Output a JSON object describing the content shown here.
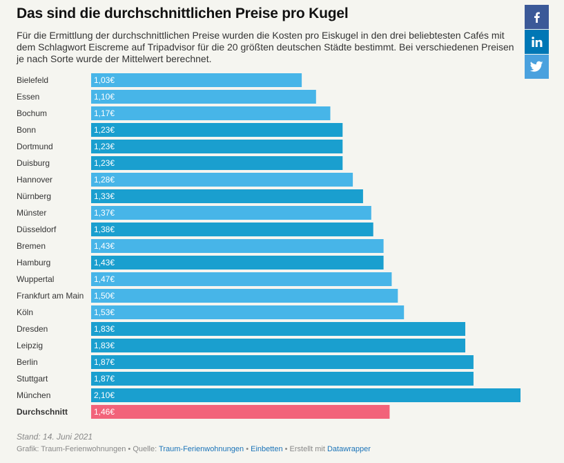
{
  "header": {
    "title": "Das sind die durchschnittlichen Preise pro Kugel",
    "description": "Für die Ermittlung der durchschnittlichen Preise wurden die Kosten pro Eiskugel in den drei beliebtesten Cafés mit dem Schlagwort Eiscreme auf Tripadvisor für die 20 größten deutschen Städte bestimmt. Bei verschiedenen Preisen je nach Sorte wurde der Mittelwert berechnet."
  },
  "share": {
    "facebook_icon": "facebook-icon",
    "linkedin_icon": "linkedin-icon",
    "twitter_icon": "twitter-icon"
  },
  "chart_data": {
    "type": "bar",
    "orientation": "horizontal",
    "title": "Das sind die durchschnittlichen Preise pro Kugel",
    "categories": [
      "Bielefeld",
      "Essen",
      "Bochum",
      "Bonn",
      "Dortmund",
      "Duisburg",
      "Hannover",
      "Nürnberg",
      "Münster",
      "Düsseldorf",
      "Bremen",
      "Hamburg",
      "Wuppertal",
      "Frankfurt am Main",
      "Köln",
      "Dresden",
      "Leipzig",
      "Berlin",
      "Stuttgart",
      "München",
      "Durchschnitt"
    ],
    "values": [
      1.03,
      1.1,
      1.17,
      1.23,
      1.23,
      1.23,
      1.28,
      1.33,
      1.37,
      1.38,
      1.43,
      1.43,
      1.47,
      1.5,
      1.53,
      1.83,
      1.83,
      1.87,
      1.87,
      2.1,
      1.46
    ],
    "value_labels": [
      "1,03€",
      "1,10€",
      "1,17€",
      "1,23€",
      "1,23€",
      "1,23€",
      "1,28€",
      "1,33€",
      "1,37€",
      "1,38€",
      "1,43€",
      "1,43€",
      "1,47€",
      "1,50€",
      "1,53€",
      "1,83€",
      "1,83€",
      "1,87€",
      "1,87€",
      "2,10€",
      "1,46€"
    ],
    "highlight_category": "Durchschnitt",
    "xlim": [
      0,
      2.1
    ],
    "colors": {
      "bar_light": "#47b5e8",
      "bar_dark": "#1a9fcf",
      "bar_highlight": "#f2637a",
      "value_text": "#ffffff",
      "label_text": "#333333"
    }
  },
  "footer": {
    "stand": "Stand: 14. Juni 2021",
    "grafik_label": "Grafik: Traum-Ferienwohnungen • Quelle: ",
    "source_link": "Traum-Ferienwohnungen",
    "sep1": " • ",
    "embed_link": "Einbetten",
    "sep2": " • Erstellt mit ",
    "datawrapper_link": "Datawrapper"
  }
}
